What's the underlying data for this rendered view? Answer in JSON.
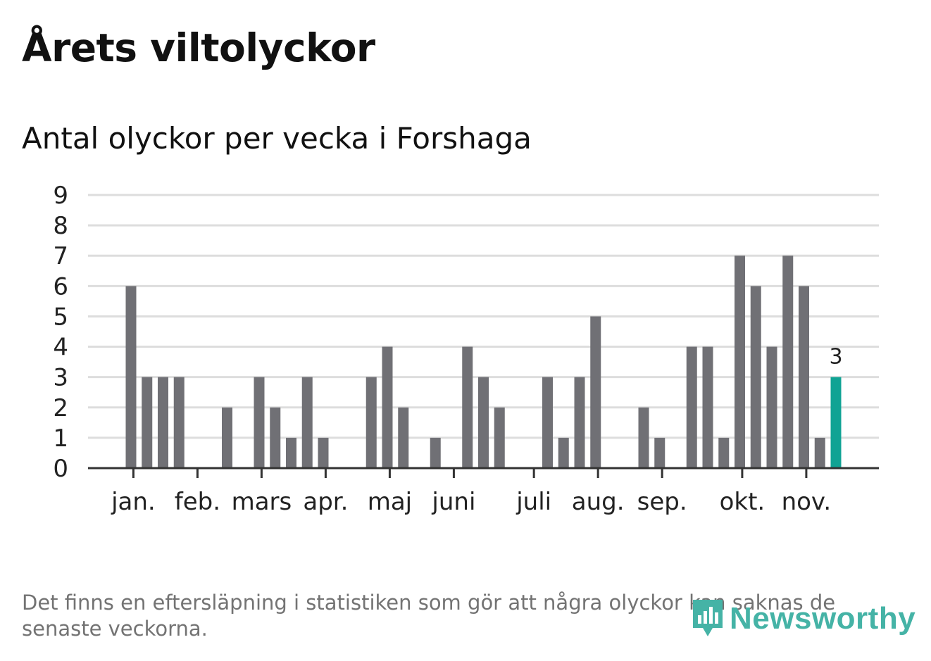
{
  "header": {
    "title": "Årets viltolyckor",
    "subtitle": "Antal olyckor per vecka i Forshaga"
  },
  "footer": {
    "note": "Det finns en eftersläpning i statistiken som gör att några olyckor kan saknas de senaste veckorna.",
    "logo_text": "Newsworthy"
  },
  "colors": {
    "bar": "#707075",
    "highlight": "#10a394",
    "grid": "#dddddd",
    "axis": "#333333",
    "logo": "#45b3a6"
  },
  "chart_data": {
    "type": "bar",
    "title": "Årets viltolyckor",
    "subtitle": "Antal olyckor per vecka i Forshaga",
    "xlabel": "",
    "ylabel": "",
    "ylim": [
      0,
      9
    ],
    "yticks": [
      0,
      1,
      2,
      3,
      4,
      5,
      6,
      7,
      8,
      9
    ],
    "grid": true,
    "week_count": 47,
    "values": [
      0,
      0,
      6,
      3,
      3,
      3,
      0,
      0,
      2,
      0,
      3,
      2,
      1,
      3,
      1,
      0,
      0,
      3,
      4,
      2,
      0,
      1,
      0,
      4,
      3,
      2,
      0,
      0,
      3,
      1,
      3,
      5,
      0,
      0,
      2,
      1,
      0,
      4,
      4,
      1,
      7,
      6,
      4,
      7,
      6,
      1,
      3
    ],
    "highlight_index": 46,
    "data_label": "3",
    "months": [
      {
        "label": "jan.",
        "week": 2.15
      },
      {
        "label": "feb.",
        "week": 6.15
      },
      {
        "label": "mars",
        "week": 10.15
      },
      {
        "label": "apr.",
        "week": 14.15
      },
      {
        "label": "maj",
        "week": 18.15
      },
      {
        "label": "juni",
        "week": 22.15
      },
      {
        "label": "juli",
        "week": 27.15
      },
      {
        "label": "aug.",
        "week": 31.15
      },
      {
        "label": "sep.",
        "week": 35.15
      },
      {
        "label": "okt.",
        "week": 40.15
      },
      {
        "label": "nov.",
        "week": 44.15
      }
    ]
  }
}
